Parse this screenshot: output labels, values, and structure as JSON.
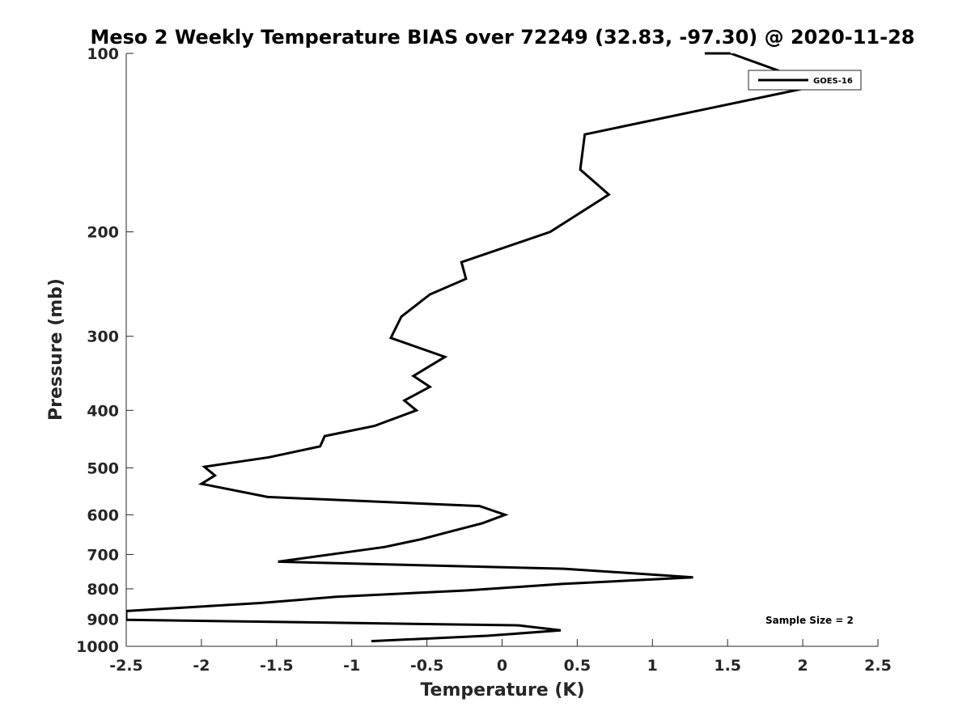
{
  "chart_data": {
    "type": "line",
    "title": "Meso 2 Weekly Temperature BIAS over 72249 (32.83, -97.30) @ 2020-11-28",
    "xlabel": "Temperature (K)",
    "ylabel": "Pressure (mb)",
    "xlim": [
      -2.5,
      2.5
    ],
    "ylim": [
      1000,
      100
    ],
    "y_scale": "log",
    "y_reversed": true,
    "grid": false,
    "x_ticks": [
      -2.5,
      -2,
      -1.5,
      -1,
      -0.5,
      0,
      0.5,
      1,
      1.5,
      2,
      2.5
    ],
    "x_tick_labels": [
      "-2.5",
      "-2",
      "-1.5",
      "-1",
      "-0.5",
      "0",
      "0.5",
      "1",
      "1.5",
      "2",
      "2.5"
    ],
    "y_ticks": [
      100,
      200,
      300,
      400,
      500,
      600,
      700,
      800,
      900,
      1000
    ],
    "y_tick_labels": [
      "100",
      "200",
      "300",
      "400",
      "500",
      "600",
      "700",
      "800",
      "900",
      "1000"
    ],
    "legend_position": "top-right",
    "annotation": "Sample Size = 2",
    "series": [
      {
        "name": "GOES-16",
        "color": "#000000",
        "x": [
          1.52,
          1.84,
          1.98,
          0.55,
          0.52,
          0.71,
          0.32,
          -0.27,
          -0.24,
          -0.48,
          -0.67,
          -0.74,
          -0.38,
          -0.59,
          -0.48,
          -0.65,
          -0.57,
          -0.85,
          -1.18,
          -1.21,
          -1.55,
          -1.98,
          -1.91,
          -2.0,
          -1.56,
          -0.15,
          0.02,
          -0.13,
          -0.34,
          -0.54,
          -0.78,
          -1.49,
          0.41,
          1.27,
          0.4,
          -0.23,
          -1.1,
          -1.6,
          -2.5,
          -2.5,
          0.11,
          0.39,
          -0.1,
          -0.87
        ],
        "y": [
          100,
          107,
          115,
          137,
          157,
          173,
          200,
          225,
          240,
          255,
          278,
          302,
          325,
          350,
          365,
          385,
          400,
          425,
          442,
          460,
          480,
          498,
          515,
          532,
          560,
          580,
          600,
          620,
          640,
          660,
          680,
          720,
          740,
          765,
          785,
          805,
          825,
          845,
          872,
          902,
          922,
          940,
          960,
          980
        ]
      }
    ]
  }
}
